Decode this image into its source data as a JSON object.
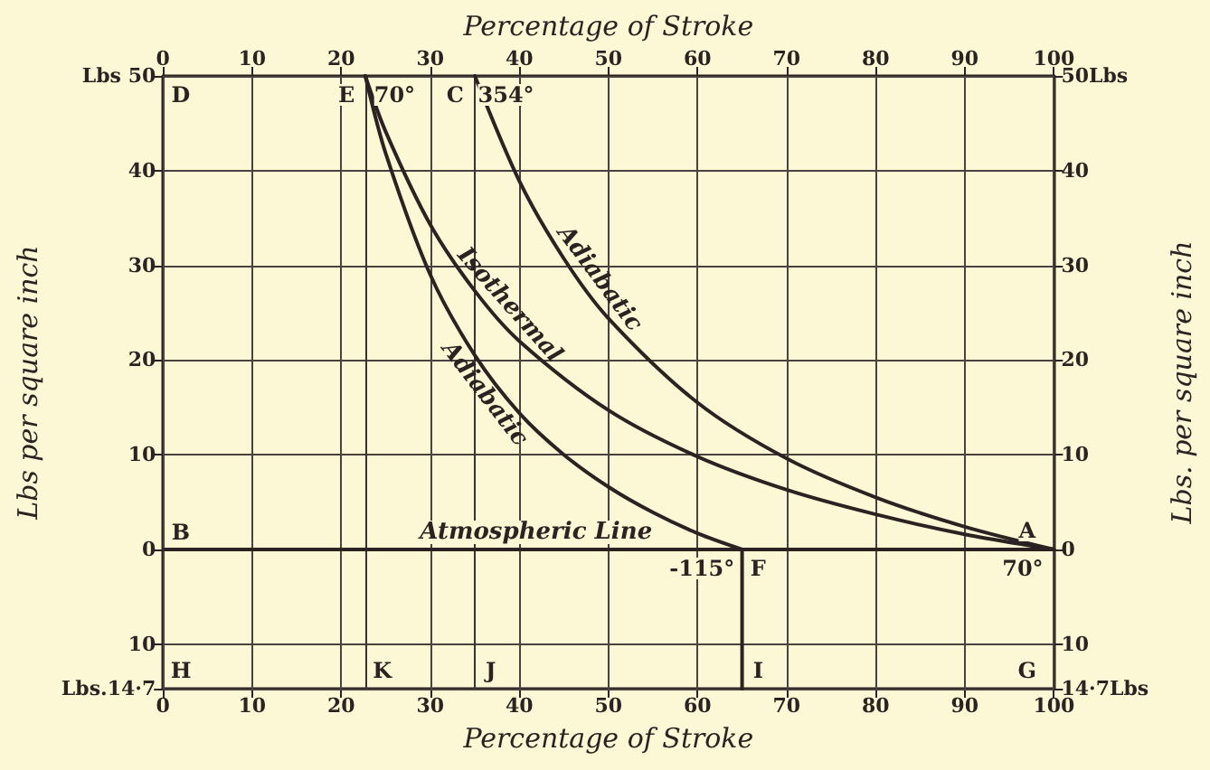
{
  "chart_data": {
    "type": "line",
    "xlabel": "Percentage of Stroke",
    "x2label": "Percentage of Stroke",
    "ylabel": "Lbs per square inch",
    "y2label": "Lbs. per square inch",
    "xlim": [
      0,
      100
    ],
    "xticks": [
      0,
      10,
      20,
      30,
      40,
      50,
      60,
      70,
      80,
      90,
      100
    ],
    "x2lim": [
      0,
      100
    ],
    "x2ticks": [
      0,
      10,
      20,
      30,
      40,
      50,
      60,
      70,
      80,
      90,
      100
    ],
    "ylim": [
      -14.7,
      50
    ],
    "yticks": [
      {
        "value": 50,
        "label": "Lbs 50"
      },
      40,
      30,
      20,
      10,
      0,
      {
        "value": -10,
        "label": "10"
      },
      {
        "value": -14.7,
        "label": "Lbs.14·7"
      }
    ],
    "y2lim": [
      -14.7,
      50
    ],
    "y2ticks": [
      {
        "value": 50,
        "label": "50Lbs"
      },
      40,
      30,
      20,
      10,
      0,
      {
        "value": -10,
        "label": "10"
      },
      {
        "value": -14.7,
        "label": "14·7Lbs"
      }
    ],
    "grid": true,
    "legend": false,
    "marker": "none",
    "line_style": "solid",
    "series": [
      {
        "name": "Adiabatic",
        "color": "#2b2222",
        "x": [
          35,
          40,
          45,
          50,
          60,
          70,
          80,
          90,
          100
        ],
        "values": [
          50,
          38.9,
          30.7,
          24.4,
          15.5,
          9.6,
          5.5,
          2.4,
          0
        ]
      },
      {
        "name": "Isothermal",
        "color": "#2b2222",
        "x": [
          22.7,
          25,
          30,
          35,
          40,
          50,
          60,
          70,
          80,
          90,
          100
        ],
        "values": [
          50,
          44.1,
          34.3,
          27.3,
          22,
          14.7,
          9.8,
          6.3,
          3.7,
          1.6,
          0
        ]
      },
      {
        "name": "Adiabatic",
        "color": "#2b2222",
        "x": [
          22.7,
          25,
          30,
          35,
          40,
          45,
          50,
          55,
          60,
          65
        ],
        "values": [
          50,
          41.8,
          29,
          20.5,
          14.4,
          10,
          6.6,
          3.9,
          1.7,
          0
        ]
      },
      {
        "color": "#2b2222",
        "x": [
          65,
          65
        ],
        "values": [
          0,
          -14.7
        ]
      }
    ],
    "ref_lines": [
      {
        "axis": "x",
        "value": 22.7,
        "color": "#3a3030"
      },
      {
        "axis": "x",
        "value": 35,
        "color": "#3a3030"
      },
      {
        "axis": "y",
        "value": 0,
        "label": "Atmospheric Line",
        "color": "#2b2222"
      }
    ],
    "annotations": [
      {
        "text": "D",
        "x": 2,
        "y": 48
      },
      {
        "text": "E",
        "x": 20.6,
        "y": 48
      },
      {
        "text": "70°",
        "x": 26,
        "y": 48
      },
      {
        "text": "C",
        "x": 32.8,
        "y": 48
      },
      {
        "text": "354°",
        "x": 38.5,
        "y": 48
      },
      {
        "text": "B",
        "x": 2,
        "y": 1.8
      },
      {
        "text": "A",
        "x": 97,
        "y": 2
      },
      {
        "text": "70°",
        "x": 96.5,
        "y": -2
      },
      {
        "text": "-115°",
        "x": 60.5,
        "y": -2
      },
      {
        "text": "F",
        "x": 66.8,
        "y": -2
      },
      {
        "text": "H",
        "x": 2,
        "y": -12.8
      },
      {
        "text": "K",
        "x": 24.6,
        "y": -12.8
      },
      {
        "text": "J",
        "x": 36.8,
        "y": -12.8
      },
      {
        "text": "I",
        "x": 66.8,
        "y": -12.8
      },
      {
        "text": "G",
        "x": 97,
        "y": -12.8
      }
    ]
  }
}
